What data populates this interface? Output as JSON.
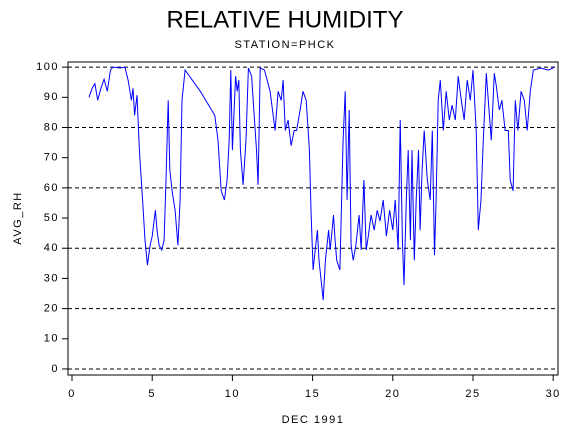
{
  "chart_data": {
    "type": "line",
    "title": "RELATIVE HUMIDITY",
    "subtitle": "STATION=PHCK",
    "x_label": "DEC 1991",
    "y_label": "AVG_RH",
    "color": "#0000ff",
    "xlim": [
      -0.25,
      30.3
    ],
    "xticks": [
      0,
      5,
      10,
      15,
      20,
      25,
      30
    ],
    "ylim": [
      -2,
      101.7
    ],
    "yticks": [
      0,
      10,
      20,
      30,
      40,
      50,
      60,
      70,
      80,
      90,
      100
    ],
    "grid_values": [
      0,
      20,
      40,
      60,
      80,
      100
    ],
    "x": [
      1.06,
      1.25,
      1.43,
      1.6,
      1.8,
      2.0,
      2.2,
      2.4,
      2.55,
      3.0,
      3.3,
      3.5,
      3.7,
      3.8,
      3.9,
      4.05,
      4.2,
      4.3,
      4.4,
      4.55,
      4.7,
      4.87,
      5.0,
      5.2,
      5.3,
      5.43,
      5.6,
      5.74,
      5.86,
      6.0,
      6.1,
      6.24,
      6.43,
      6.6,
      6.74,
      6.86,
      7.05,
      8.0,
      8.9,
      9.1,
      9.3,
      9.5,
      9.67,
      9.8,
      9.9,
      10.0,
      10.2,
      10.3,
      10.4,
      10.5,
      10.67,
      10.85,
      11.0,
      11.2,
      11.5,
      11.6,
      11.73,
      12.0,
      12.35,
      12.66,
      12.85,
      13.04,
      13.16,
      13.3,
      13.47,
      13.66,
      13.85,
      14.0,
      14.22,
      14.4,
      14.6,
      14.8,
      14.9,
      15.03,
      15.16,
      15.3,
      15.4,
      15.53,
      15.66,
      15.8,
      16.0,
      16.1,
      16.3,
      16.4,
      16.5,
      16.7,
      16.9,
      17.03,
      17.15,
      17.28,
      17.4,
      17.53,
      17.7,
      17.9,
      18.03,
      18.2,
      18.34,
      18.47,
      18.65,
      18.84,
      19.03,
      19.2,
      19.4,
      19.6,
      19.8,
      20.0,
      20.15,
      20.34,
      20.46,
      20.6,
      20.7,
      20.84,
      20.96,
      21.1,
      21.2,
      21.34,
      21.46,
      21.6,
      21.7,
      21.83,
      21.96,
      22.15,
      22.33,
      22.46,
      22.6,
      22.7,
      22.83,
      22.96,
      23.15,
      23.33,
      23.52,
      23.7,
      23.9,
      24.08,
      24.27,
      24.45,
      24.64,
      24.83,
      25.0,
      25.2,
      25.33,
      25.5,
      25.64,
      25.83,
      26.0,
      26.14,
      26.33,
      26.45,
      26.64,
      26.8,
      27.0,
      27.2,
      27.32,
      27.5,
      27.64,
      27.8,
      28.0,
      28.2,
      28.38,
      28.57,
      28.76,
      29.2,
      29.7,
      30.1
    ],
    "values": [
      90,
      93,
      94.5,
      89,
      93,
      96,
      92,
      99,
      100,
      99.7,
      100,
      95.7,
      89,
      93,
      84,
      90.7,
      72.5,
      64,
      56,
      42.7,
      34.4,
      41,
      44,
      52.6,
      46,
      41,
      39.4,
      42.7,
      62.6,
      89,
      66,
      59,
      52.6,
      41,
      56,
      89,
      99,
      92,
      84,
      75.8,
      59,
      56,
      62.6,
      75.8,
      99,
      72.5,
      97,
      92,
      95.7,
      72.5,
      61,
      75.8,
      99.7,
      97,
      72.5,
      61,
      99.7,
      99,
      92,
      79,
      92,
      89,
      95.7,
      79,
      82.5,
      74,
      79,
      79,
      85.8,
      92,
      89,
      72.5,
      52.6,
      32.8,
      39.4,
      46,
      36,
      29.5,
      22.8,
      36,
      46,
      39.4,
      51,
      42.7,
      36,
      32.8,
      75.8,
      92,
      56,
      85.8,
      41,
      36,
      41,
      51,
      39.4,
      62.6,
      39.4,
      44,
      51,
      46,
      52.6,
      49,
      56,
      44,
      52.6,
      46,
      56,
      39.4,
      82.5,
      42.7,
      27.8,
      56,
      72.5,
      42.7,
      72.5,
      36,
      56,
      72.5,
      46,
      66,
      79,
      62.6,
      56,
      79,
      37.7,
      56,
      89,
      95.7,
      79,
      92,
      82.5,
      87.4,
      82.5,
      97,
      89,
      82.5,
      95.7,
      89,
      99,
      79,
      46,
      56,
      75.8,
      98,
      85.8,
      75.8,
      98,
      94,
      85.8,
      89,
      79,
      79,
      62.6,
      59,
      89,
      79,
      92,
      89,
      79,
      92,
      99,
      99.7,
      99,
      100
    ]
  }
}
